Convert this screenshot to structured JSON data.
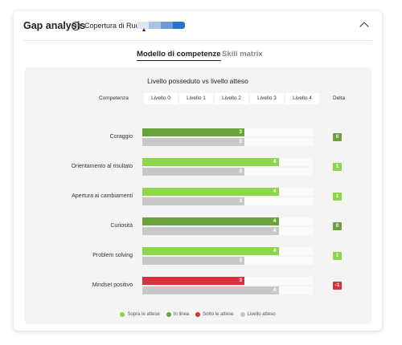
{
  "header": {
    "title": "Gap analysis",
    "subtitle": "Copertura di Ruolo",
    "role_segment_colors": [
      "#dde6f3",
      "#a9c3e6",
      "#6d98d6",
      "#2f6fcf"
    ]
  },
  "tabs": [
    {
      "label": "Modello di competenze",
      "active": true
    },
    {
      "label": "Skill matrix",
      "active": false
    }
  ],
  "colors": {
    "above": "#8bd64a",
    "in_line": "#6aa23d",
    "below": "#d9303c",
    "expected": "#c8c8c8",
    "track": "#fbfbfb"
  },
  "chart_data": {
    "type": "bar",
    "title": "Livello posseduto vs livello atteso",
    "column_headers": {
      "competence": "Competenza",
      "delta": "Delta"
    },
    "levels": [
      "Livello 0",
      "Livello 1",
      "Livello 2",
      "Livello 3",
      "Livello 4"
    ],
    "xlim": [
      0,
      5
    ],
    "categories": [
      "Coraggio",
      "Orientamento al risultato",
      "Apertura ai cambiamenti",
      "Curiosità",
      "Problem solving",
      "Mindset positivo"
    ],
    "series": [
      {
        "name": "Livello posseduto",
        "values": [
          3,
          4,
          4,
          4,
          4,
          3
        ],
        "status": [
          "in_line",
          "above",
          "above",
          "in_line",
          "above",
          "below"
        ]
      },
      {
        "name": "Livello atteso",
        "values": [
          3,
          3,
          3,
          4,
          3,
          4
        ]
      }
    ],
    "delta": [
      "0",
      "1",
      "1",
      "0",
      "1",
      "-1"
    ],
    "legend": [
      {
        "label": "Sopra le attese",
        "color": "#8bd64a"
      },
      {
        "label": "In linea",
        "color": "#6aa23d"
      },
      {
        "label": "Sotto le attese",
        "color": "#d9303c"
      },
      {
        "label": "Livello atteso",
        "color": "#c8c8c8"
      }
    ]
  }
}
